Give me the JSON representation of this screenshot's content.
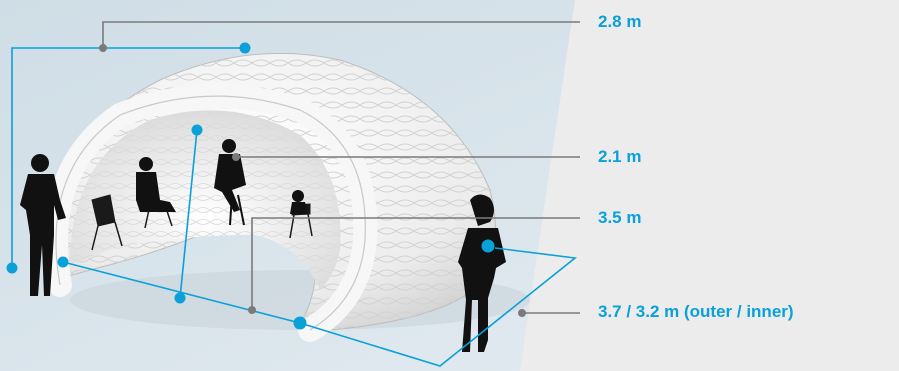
{
  "colors": {
    "accent": "#0aa0d8",
    "leader_line": "#7a7a7a",
    "background_left": "#d7e3ea",
    "background_right": "#ececec",
    "silhouette": "#111111",
    "dome": "#f4f4f4"
  },
  "dimensions": [
    {
      "id": "height_outer",
      "label": "2.8 m"
    },
    {
      "id": "height_inner",
      "label": "2.1 m"
    },
    {
      "id": "length",
      "label": "3.5 m"
    },
    {
      "id": "width",
      "label": "3.7 / 3.2 m (outer / inner)"
    }
  ]
}
